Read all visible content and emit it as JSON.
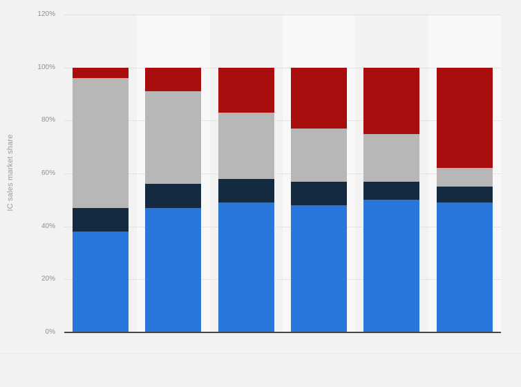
{
  "page": {
    "background_color": "#f2f2f2",
    "band_highlight_color": "#f8f8f8",
    "gridline_color": "#d2d2d2",
    "zero_axis_color": "#454545",
    "tick_label_color": "#8f8f8f"
  },
  "chart_data": {
    "type": "bar",
    "stacked": true,
    "orientation": "vertical",
    "title": "",
    "xlabel": "",
    "ylabel": "IC sales market share",
    "ylim": [
      0,
      120
    ],
    "ytick_values": [
      0,
      20,
      40,
      60,
      80,
      100,
      120
    ],
    "ytick_labels": [
      "0%",
      "20%",
      "40%",
      "60%",
      "80%",
      "100%",
      "120%"
    ],
    "xtick_labels": [
      "",
      "",
      "",
      "",
      "",
      ""
    ],
    "grid": "horizontal-dotted",
    "legend_position": "none",
    "categories": [
      "",
      "",
      "",
      "",
      "",
      ""
    ],
    "series": [
      {
        "name": "blue-segment",
        "color": "#2B76DB",
        "values": [
          38,
          47,
          49,
          48,
          50,
          49
        ]
      },
      {
        "name": "navy-segment",
        "color": "#132A40",
        "values": [
          9,
          9,
          9,
          9,
          7,
          6
        ]
      },
      {
        "name": "gray-segment",
        "color": "#B7B7B7",
        "values": [
          49,
          35,
          25,
          20,
          18,
          7
        ]
      },
      {
        "name": "red-segment",
        "color": "#A90E0E",
        "values": [
          4,
          9,
          17,
          23,
          25,
          38
        ]
      }
    ]
  }
}
